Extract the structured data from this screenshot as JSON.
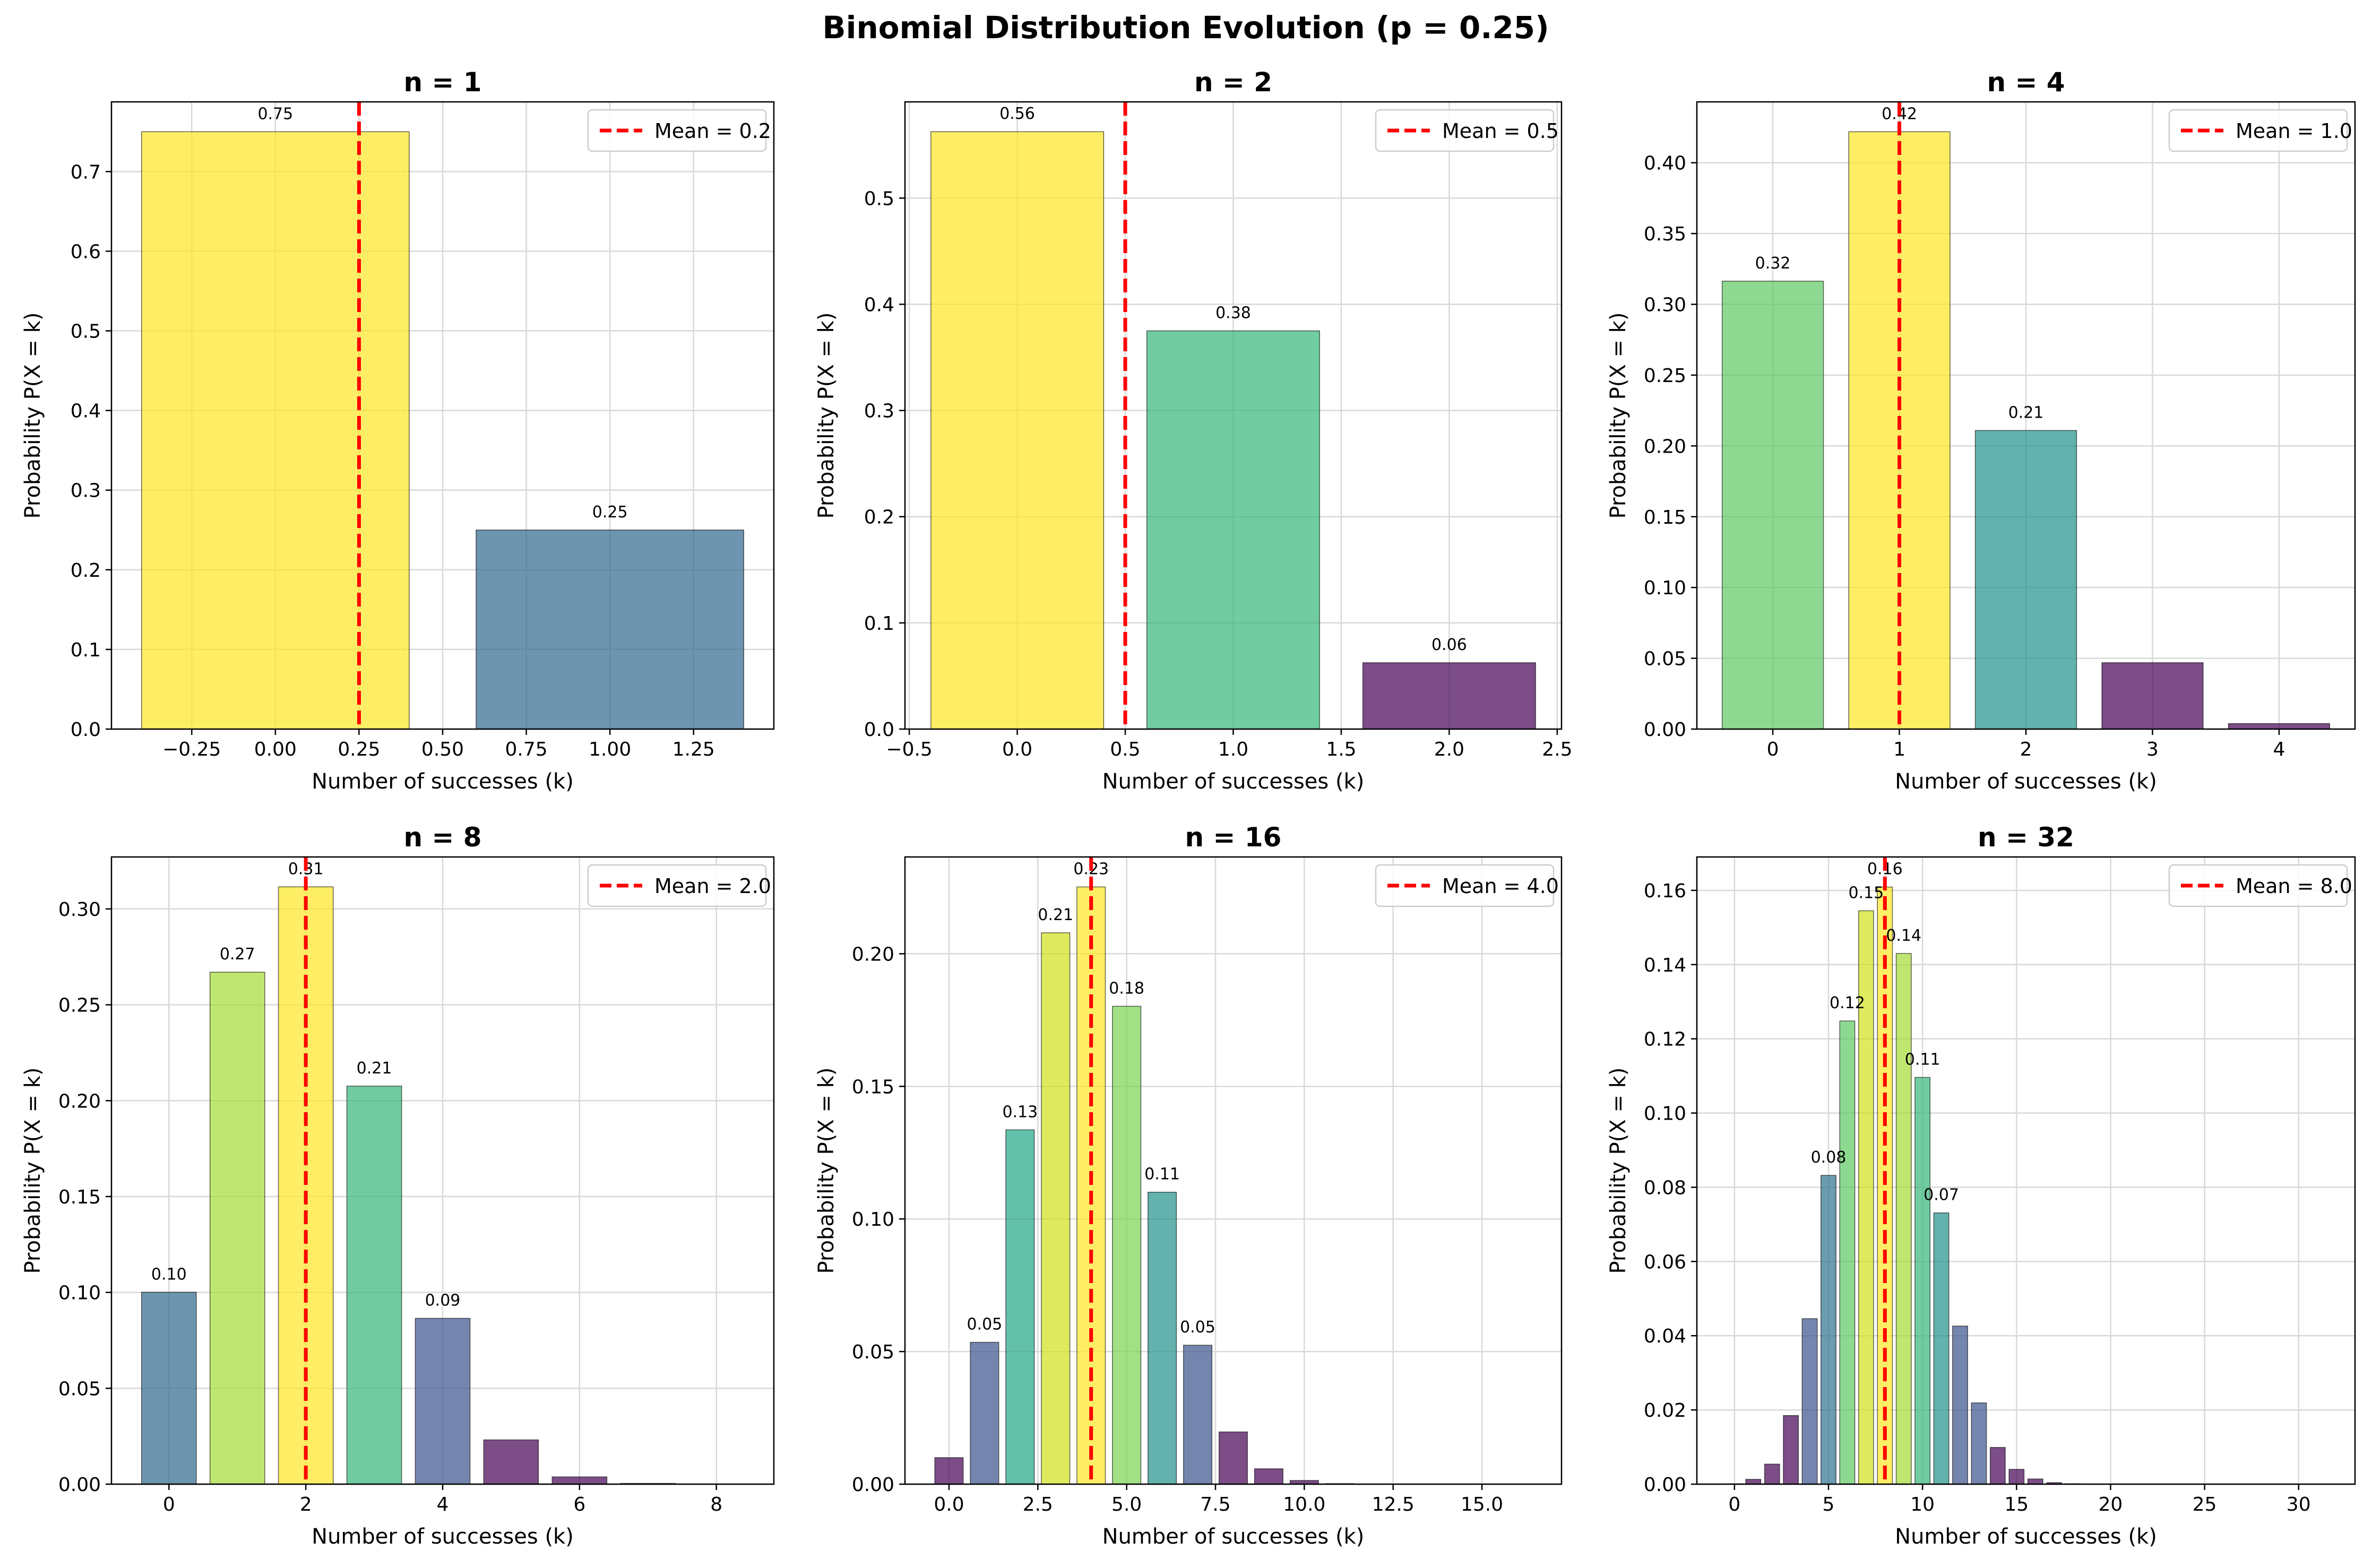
{
  "figure_title": "Binomial Distribution Evolution (p = 0.25)",
  "chart_data": [
    {
      "type": "bar",
      "title": "n = 1",
      "xlabel": "Number of successes (k)",
      "ylabel": "Probability P(X = k)",
      "x": [
        0,
        1
      ],
      "values": [
        0.75,
        0.25
      ],
      "colors": [
        "#fde725",
        "#31688e"
      ],
      "data_labels": [
        "0.75",
        "0.25"
      ],
      "xlim": [
        -0.49,
        1.49
      ],
      "ylim": [
        0,
        0.7875
      ],
      "xticks": [
        -0.25,
        0.0,
        0.25,
        0.5,
        0.75,
        1.0,
        1.25
      ],
      "xtick_labels": [
        "−0.25",
        "0.00",
        "0.25",
        "0.50",
        "0.75",
        "1.00",
        "1.25"
      ],
      "yticks": [
        0.0,
        0.1,
        0.2,
        0.3,
        0.4,
        0.5,
        0.6,
        0.7
      ],
      "ytick_labels": [
        "0.0",
        "0.1",
        "0.2",
        "0.3",
        "0.4",
        "0.5",
        "0.6",
        "0.7"
      ],
      "mean_value": 0.25,
      "legend": {
        "label": "Mean = 0.2",
        "position": "upper-right"
      },
      "grid": true
    },
    {
      "type": "bar",
      "title": "n = 2",
      "xlabel": "Number of successes (k)",
      "ylabel": "Probability P(X = k)",
      "x": [
        0,
        1,
        2
      ],
      "values": [
        0.5625,
        0.375,
        0.0625
      ],
      "colors": [
        "#fde725",
        "#35b779",
        "#440154"
      ],
      "data_labels": [
        "0.56",
        "0.38",
        "0.06"
      ],
      "xlim": [
        -0.52,
        2.52
      ],
      "ylim": [
        0,
        0.5906
      ],
      "xticks": [
        -0.5,
        0.0,
        0.5,
        1.0,
        1.5,
        2.0,
        2.5
      ],
      "xtick_labels": [
        "−0.5",
        "0.0",
        "0.5",
        "1.0",
        "1.5",
        "2.0",
        "2.5"
      ],
      "yticks": [
        0.0,
        0.1,
        0.2,
        0.3,
        0.4,
        0.5
      ],
      "ytick_labels": [
        "0.0",
        "0.1",
        "0.2",
        "0.3",
        "0.4",
        "0.5"
      ],
      "mean_value": 0.5,
      "legend": {
        "label": "Mean = 0.5",
        "position": "upper-right"
      },
      "grid": true
    },
    {
      "type": "bar",
      "title": "n = 4",
      "xlabel": "Number of successes (k)",
      "ylabel": "Probability P(X = k)",
      "x": [
        0,
        1,
        2,
        3,
        4
      ],
      "values": [
        0.3164,
        0.4219,
        0.2109,
        0.0469,
        0.0039
      ],
      "colors": [
        "#5ec962",
        "#fde725",
        "#21918c",
        "#440154",
        "#440154"
      ],
      "data_labels": [
        "0.32",
        "0.42",
        "0.21",
        "",
        ""
      ],
      "xlim": [
        -0.6,
        4.6
      ],
      "ylim": [
        0,
        0.443
      ],
      "xticks": [
        0,
        1,
        2,
        3,
        4
      ],
      "xtick_labels": [
        "0",
        "1",
        "2",
        "3",
        "4"
      ],
      "yticks": [
        0.0,
        0.05,
        0.1,
        0.15,
        0.2,
        0.25,
        0.3,
        0.35,
        0.4
      ],
      "ytick_labels": [
        "0.00",
        "0.05",
        "0.10",
        "0.15",
        "0.20",
        "0.25",
        "0.30",
        "0.35",
        "0.40"
      ],
      "mean_value": 1.0,
      "legend": {
        "label": "Mean = 1.0",
        "position": "upper-right"
      },
      "grid": true
    },
    {
      "type": "bar",
      "title": "n = 8",
      "xlabel": "Number of successes (k)",
      "ylabel": "Probability P(X = k)",
      "x": [
        0,
        1,
        2,
        3,
        4,
        5,
        6,
        7,
        8
      ],
      "values": [
        0.1001,
        0.267,
        0.3115,
        0.2076,
        0.0865,
        0.0231,
        0.0038,
        0.0004,
        0.0
      ],
      "colors": [
        "#31688e",
        "#a5db36",
        "#fde725",
        "#35b779",
        "#3b528b",
        "#440154",
        "#440154",
        "#440154",
        "#440154"
      ],
      "data_labels": [
        "0.10",
        "0.27",
        "0.31",
        "0.21",
        "0.09",
        "",
        "",
        "",
        ""
      ],
      "xlim": [
        -0.84,
        8.84
      ],
      "ylim": [
        0,
        0.3271
      ],
      "xticks": [
        0,
        2,
        4,
        6,
        8
      ],
      "xtick_labels": [
        "0",
        "2",
        "4",
        "6",
        "8"
      ],
      "yticks": [
        0.0,
        0.05,
        0.1,
        0.15,
        0.2,
        0.25,
        0.3
      ],
      "ytick_labels": [
        "0.00",
        "0.05",
        "0.10",
        "0.15",
        "0.20",
        "0.25",
        "0.30"
      ],
      "mean_value": 2.0,
      "legend": {
        "label": "Mean = 2.0",
        "position": "upper-right"
      },
      "grid": true
    },
    {
      "type": "bar",
      "title": "n = 16",
      "xlabel": "Number of successes (k)",
      "ylabel": "Probability P(X = k)",
      "x": [
        0,
        1,
        2,
        3,
        4,
        5,
        6,
        7,
        8,
        9,
        10,
        11,
        12,
        13,
        14,
        15,
        16
      ],
      "values": [
        0.01,
        0.0535,
        0.1336,
        0.2079,
        0.2252,
        0.1802,
        0.1101,
        0.0524,
        0.0197,
        0.0058,
        0.0014,
        0.0002,
        0.0,
        0.0,
        0.0,
        0.0,
        0.0
      ],
      "colors": [
        "#440154",
        "#3b528b",
        "#21a585",
        "#d2e21b",
        "#fde725",
        "#7ad151",
        "#21918c",
        "#3b528b",
        "#440154",
        "#440154",
        "#440154",
        "#440154",
        "#440154",
        "#440154",
        "#440154",
        "#440154",
        "#440154"
      ],
      "data_labels": [
        "",
        "0.05",
        "0.13",
        "0.21",
        "0.23",
        "0.18",
        "0.11",
        "0.05",
        "",
        "",
        "",
        "",
        "",
        "",
        "",
        "",
        ""
      ],
      "xlim": [
        -1.24,
        17.24
      ],
      "ylim": [
        0,
        0.2365
      ],
      "xticks": [
        0.0,
        2.5,
        5.0,
        7.5,
        10.0,
        12.5,
        15.0
      ],
      "xtick_labels": [
        "0.0",
        "2.5",
        "5.0",
        "7.5",
        "10.0",
        "12.5",
        "15.0"
      ],
      "yticks": [
        0.0,
        0.05,
        0.1,
        0.15,
        0.2
      ],
      "ytick_labels": [
        "0.00",
        "0.05",
        "0.10",
        "0.15",
        "0.20"
      ],
      "mean_value": 4.0,
      "legend": {
        "label": "Mean = 4.0",
        "position": "upper-right"
      },
      "grid": true
    },
    {
      "type": "bar",
      "title": "n = 32",
      "xlabel": "Number of successes (k)",
      "ylabel": "Probability P(X = k)",
      "x": [
        0,
        1,
        2,
        3,
        4,
        5,
        6,
        7,
        8,
        9,
        10,
        11,
        12,
        13,
        14,
        15,
        16,
        17,
        18,
        19,
        20,
        21,
        22,
        23,
        24,
        25,
        26,
        27,
        28,
        29,
        30,
        31,
        32
      ],
      "values": [
        0.0001,
        0.0013,
        0.0054,
        0.0185,
        0.0446,
        0.0832,
        0.1248,
        0.1545,
        0.1609,
        0.143,
        0.1096,
        0.0731,
        0.0426,
        0.0219,
        0.0099,
        0.004,
        0.0014,
        0.0004,
        0.0001,
        0.0,
        0.0,
        0.0,
        0.0,
        0.0,
        0.0,
        0.0,
        0.0,
        0.0,
        0.0,
        0.0,
        0.0,
        0.0,
        0.0
      ],
      "colors": [
        "#440154",
        "#440154",
        "#440154",
        "#440154",
        "#3b528b",
        "#2c728e",
        "#5ec962",
        "#d2e21b",
        "#fde725",
        "#a5db36",
        "#35b779",
        "#21918c",
        "#3b528b",
        "#3b528b",
        "#440154",
        "#440154",
        "#440154",
        "#440154",
        "#440154",
        "#440154",
        "#440154",
        "#440154",
        "#440154",
        "#440154",
        "#440154",
        "#440154",
        "#440154",
        "#440154",
        "#440154",
        "#440154",
        "#440154",
        "#440154",
        "#440154"
      ],
      "data_labels": [
        "",
        "",
        "",
        "",
        "",
        "0.08",
        "0.12",
        "0.15",
        "0.16",
        "0.14",
        "0.11",
        "0.07",
        "",
        "",
        "",
        "",
        "",
        "",
        "",
        "",
        "",
        "",
        "",
        "",
        "",
        "",
        "",
        "",
        "",
        "",
        "",
        "",
        ""
      ],
      "xlim": [
        -2.0,
        33.0
      ],
      "ylim": [
        0,
        0.169
      ],
      "xticks": [
        0,
        5,
        10,
        15,
        20,
        25,
        30
      ],
      "xtick_labels": [
        "0",
        "5",
        "10",
        "15",
        "20",
        "25",
        "30"
      ],
      "yticks": [
        0.0,
        0.02,
        0.04,
        0.06,
        0.08,
        0.1,
        0.12,
        0.14,
        0.16
      ],
      "ytick_labels": [
        "0.00",
        "0.02",
        "0.04",
        "0.06",
        "0.08",
        "0.10",
        "0.12",
        "0.14",
        "0.16"
      ],
      "mean_value": 8.0,
      "legend": {
        "label": "Mean = 8.0",
        "position": "upper-right"
      },
      "grid": true
    }
  ]
}
